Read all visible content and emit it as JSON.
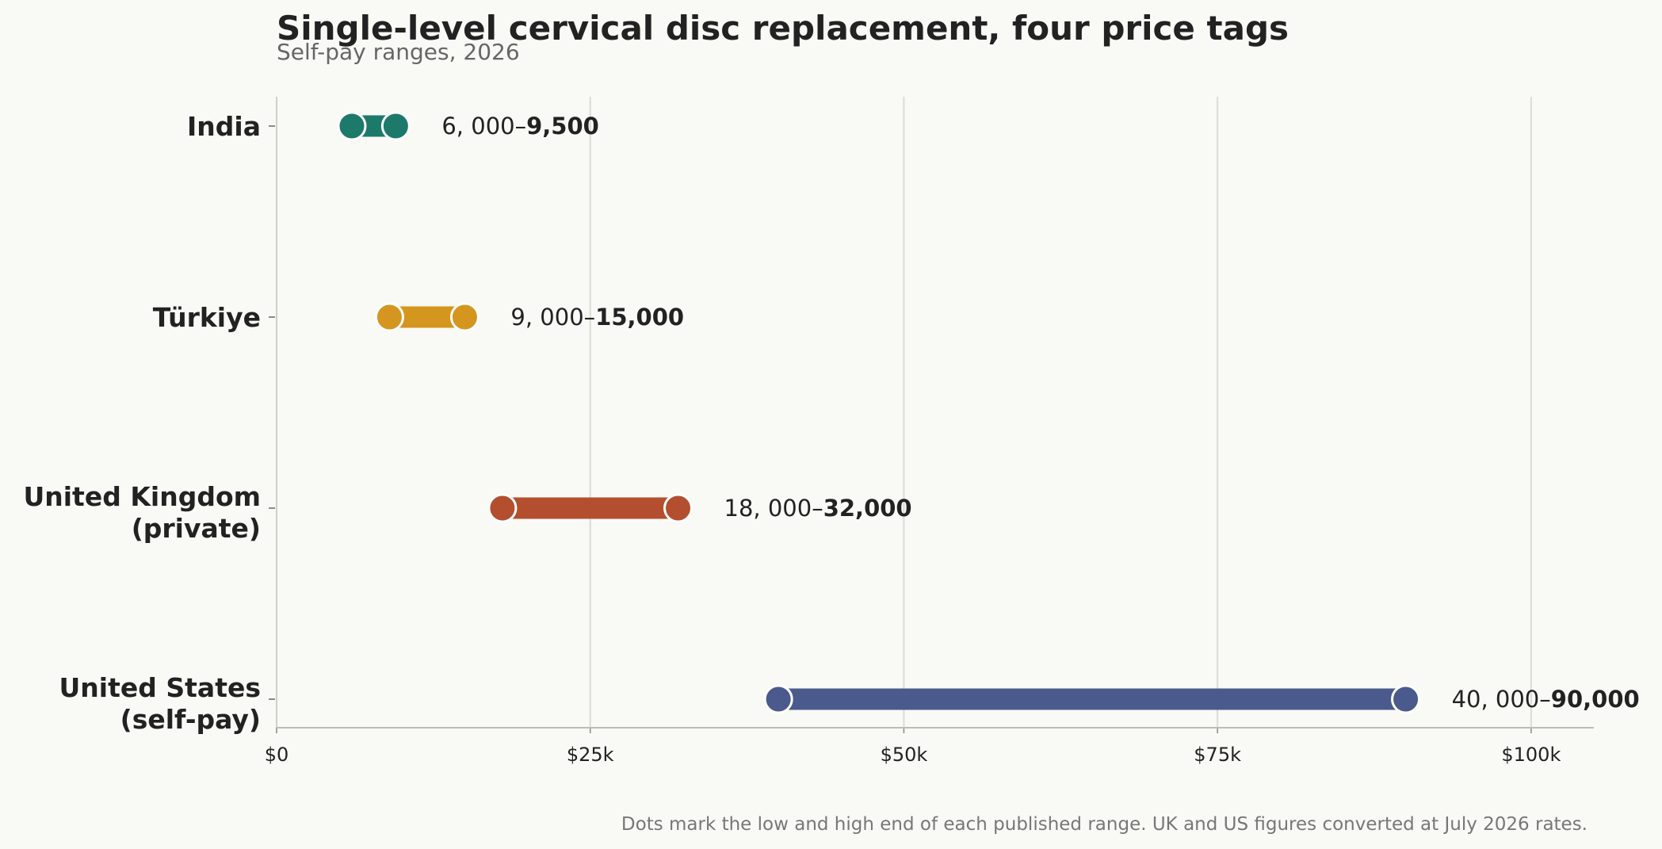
{
  "chart_data": {
    "type": "dumbbell",
    "title": "Single-level cervical disc replacement, four price tags",
    "subtitle": "Self-pay ranges, 2026",
    "xlabel": "",
    "ylabel": "",
    "xlim": [
      0,
      105000
    ],
    "x_ticks": [
      {
        "value": 0,
        "label": "$0"
      },
      {
        "value": 25000,
        "label": "$25k"
      },
      {
        "value": 50000,
        "label": "$50k"
      },
      {
        "value": 75000,
        "label": "$75k"
      },
      {
        "value": 100000,
        "label": "$100k"
      }
    ],
    "grid": "vertical",
    "series": [
      {
        "category": [
          "India"
        ],
        "low": 6000,
        "high": 9500,
        "color": "#1d7a6b",
        "low_label": "6, 000–",
        "high_label": "9,500"
      },
      {
        "category": [
          "Türkiye"
        ],
        "low": 9000,
        "high": 15000,
        "color": "#d4961f",
        "low_label": "9, 000–",
        "high_label": "15,000"
      },
      {
        "category": [
          "United Kingdom",
          "(private)"
        ],
        "low": 18000,
        "high": 32000,
        "color": "#b34f2e",
        "low_label": "18, 000–",
        "high_label": "32,000"
      },
      {
        "category": [
          "United States",
          "(self-pay)"
        ],
        "low": 40000,
        "high": 90000,
        "color": "#4a5a8c",
        "low_label": "40, 000–",
        "high_label": "90,000"
      }
    ],
    "footnote": "Dots mark the low and high end of each published range. UK and US figures converted at July 2026 rates."
  }
}
